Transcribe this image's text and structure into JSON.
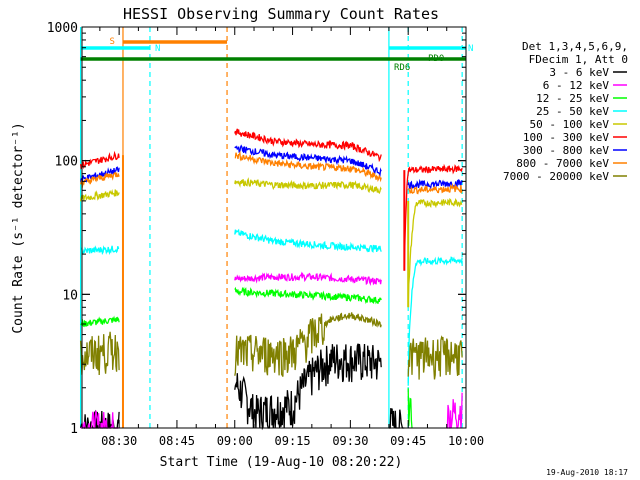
{
  "chart_data": {
    "type": "line",
    "title": "HESSI Observing Summary Count Rates",
    "xlabel": "Start Time (19-Aug-10 08:20:22)",
    "ylabel": "Count Rate (s⁻¹ detector⁻¹)",
    "y_scale": "log",
    "ylim": [
      1,
      1000
    ],
    "xlim": [
      "08:20:22",
      "10:00"
    ],
    "x_ticks": [
      "08:30",
      "08:45",
      "09:00",
      "09:15",
      "09:30",
      "09:45",
      "10:00"
    ],
    "y_ticks": [
      "1",
      "10",
      "100",
      "1000"
    ],
    "legend_header": [
      "Det 1,3,4,5,6,9,",
      "FDecim 1, Att 0"
    ],
    "legend_position": "right",
    "footer": "19-Aug-2010 18:17",
    "flags": [
      {
        "label": "S",
        "color": "#ff8000",
        "start": "08:31",
        "end": "08:58"
      },
      {
        "label": "N",
        "color": "#00ffff",
        "start": "08:20",
        "end": "08:38"
      },
      {
        "label": "N",
        "color": "#00ffff",
        "start": "09:40",
        "end": "10:00"
      },
      {
        "label": "RD6",
        "color": "#008000",
        "start": "08:20",
        "end": "10:00"
      },
      {
        "label": "PD0",
        "color": "#008000",
        "start": "09:46",
        "end": "10:00"
      }
    ],
    "series": [
      {
        "name": "3 - 6 keV",
        "color": "#000000",
        "segments": [
          [
            [
              "08:20",
              1.0
            ],
            [
              "08:30",
              1.0
            ]
          ],
          [
            [
              "09:00",
              2.2
            ],
            [
              "09:05",
              1.3
            ],
            [
              "09:15",
              1.5
            ],
            [
              "09:20",
              2.5
            ],
            [
              "09:25",
              3.3
            ],
            [
              "09:30",
              3.3
            ],
            [
              "09:38",
              3.1
            ]
          ],
          [
            [
              "09:40",
              1.1
            ],
            [
              "09:44",
              1.0
            ]
          ]
        ]
      },
      {
        "name": "6 - 12 keV",
        "color": "#ff00ff",
        "segments": [
          [
            [
              "08:20",
              1.0
            ],
            [
              "08:30",
              1.0
            ]
          ],
          [
            [
              "09:00",
              13.0
            ],
            [
              "09:10",
              13.5
            ],
            [
              "09:20",
              13.5
            ],
            [
              "09:30",
              13.0
            ],
            [
              "09:38",
              12.5
            ]
          ],
          [
            [
              "09:55",
              1.2
            ],
            [
              "09:59",
              1.4
            ]
          ]
        ]
      },
      {
        "name": "12 - 25 keV",
        "color": "#00ff00",
        "segments": [
          [
            [
              "08:20",
              6.0
            ],
            [
              "08:30",
              6.5
            ]
          ],
          [
            [
              "09:00",
              10.5
            ],
            [
              "09:15",
              10.0
            ],
            [
              "09:30",
              9.5
            ],
            [
              "09:38",
              9.0
            ]
          ],
          [
            [
              "09:45",
              1.5
            ],
            [
              "09:46",
              1.1
            ]
          ]
        ]
      },
      {
        "name": "25 - 50 keV",
        "color": "#00ffff",
        "segments": [
          [
            [
              "08:20",
              21.0
            ],
            [
              "08:30",
              22.0
            ]
          ],
          [
            [
              "09:00",
              29.0
            ],
            [
              "09:10",
              25.0
            ],
            [
              "09:25",
              23.0
            ],
            [
              "09:38",
              22.0
            ]
          ],
          [
            [
              "09:45",
              3.0
            ],
            [
              "09:47",
              17.5
            ],
            [
              "09:59",
              18.0
            ]
          ]
        ]
      },
      {
        "name": "50 - 100 keV",
        "color": "#c8c800",
        "segments": [
          [
            [
              "08:20",
              52.0
            ],
            [
              "08:30",
              58.0
            ]
          ],
          [
            [
              "09:00",
              70.0
            ],
            [
              "09:10",
              66.0
            ],
            [
              "09:20",
              65.0
            ],
            [
              "09:30",
              66.0
            ],
            [
              "09:38",
              60.0
            ]
          ],
          [
            [
              "09:45",
              8.0
            ],
            [
              "09:47",
              48.0
            ],
            [
              "09:59",
              49.0
            ]
          ]
        ]
      },
      {
        "name": "100 - 300 keV",
        "color": "#ff0000",
        "segments": [
          [
            [
              "08:20",
              92.0
            ],
            [
              "08:30",
              110.0
            ]
          ],
          [
            [
              "09:00",
              165.0
            ],
            [
              "09:10",
              140.0
            ],
            [
              "09:20",
              132.0
            ],
            [
              "09:30",
              130.0
            ],
            [
              "09:38",
              105.0
            ]
          ],
          [
            [
              "09:44",
              15.0
            ],
            [
              "09:45",
              85.0
            ],
            [
              "09:59",
              87.0
            ]
          ]
        ]
      },
      {
        "name": "300 - 800 keV",
        "color": "#0000ff",
        "segments": [
          [
            [
              "08:20",
              72.0
            ],
            [
              "08:30",
              85.0
            ]
          ],
          [
            [
              "09:00",
              125.0
            ],
            [
              "09:10",
              110.0
            ],
            [
              "09:20",
              105.0
            ],
            [
              "09:30",
              100.0
            ],
            [
              "09:38",
              82.0
            ]
          ],
          [
            [
              "09:45",
              66.0
            ],
            [
              "09:59",
              68.0
            ]
          ]
        ]
      },
      {
        "name": "800 - 7000 keV",
        "color": "#ff8000",
        "segments": [
          [
            [
              "08:20",
              68.0
            ],
            [
              "08:30",
              80.0
            ]
          ],
          [
            [
              "09:00",
              110.0
            ],
            [
              "09:10",
              96.0
            ],
            [
              "09:20",
              90.0
            ],
            [
              "09:30",
              88.0
            ],
            [
              "09:38",
              74.0
            ]
          ],
          [
            [
              "09:45",
              60.0
            ],
            [
              "09:59",
              62.0
            ]
          ]
        ]
      },
      {
        "name": "7000 - 20000 keV",
        "color": "#808000",
        "segments": [
          [
            [
              "08:20",
              3.5
            ],
            [
              "08:30",
              4.0
            ]
          ],
          [
            [
              "09:00",
              3.7
            ],
            [
              "09:15",
              3.7
            ],
            [
              "09:20",
              5.0
            ],
            [
              "09:25",
              6.5
            ],
            [
              "09:30",
              7.0
            ],
            [
              "09:38",
              6.0
            ]
          ],
          [
            [
              "09:45",
              3.5
            ],
            [
              "09:59",
              3.6
            ]
          ]
        ]
      }
    ],
    "spikes": [
      {
        "color": "#ff8000",
        "time": "08:31",
        "from": 1.0,
        "to": 110.0
      },
      {
        "color": "#ff0000",
        "time": "09:44",
        "from": 15.0,
        "to": 85.0
      },
      {
        "color": "#c8c800",
        "time": "09:45",
        "from": 8.0,
        "to": 50.0
      }
    ],
    "vlines": [
      {
        "time": "08:20",
        "color": "#00ffff",
        "style": "solid"
      },
      {
        "time": "08:31",
        "color": "#ff8000",
        "style": "solid"
      },
      {
        "time": "08:38",
        "color": "#00ffff",
        "style": "dashed"
      },
      {
        "time": "08:58",
        "color": "#ff8000",
        "style": "dashed"
      },
      {
        "time": "09:40",
        "color": "#00ffff",
        "style": "solid"
      },
      {
        "time": "09:45",
        "color": "#00ffff",
        "style": "dashed"
      },
      {
        "time": "09:59",
        "color": "#00ffff",
        "style": "dashed"
      }
    ]
  }
}
